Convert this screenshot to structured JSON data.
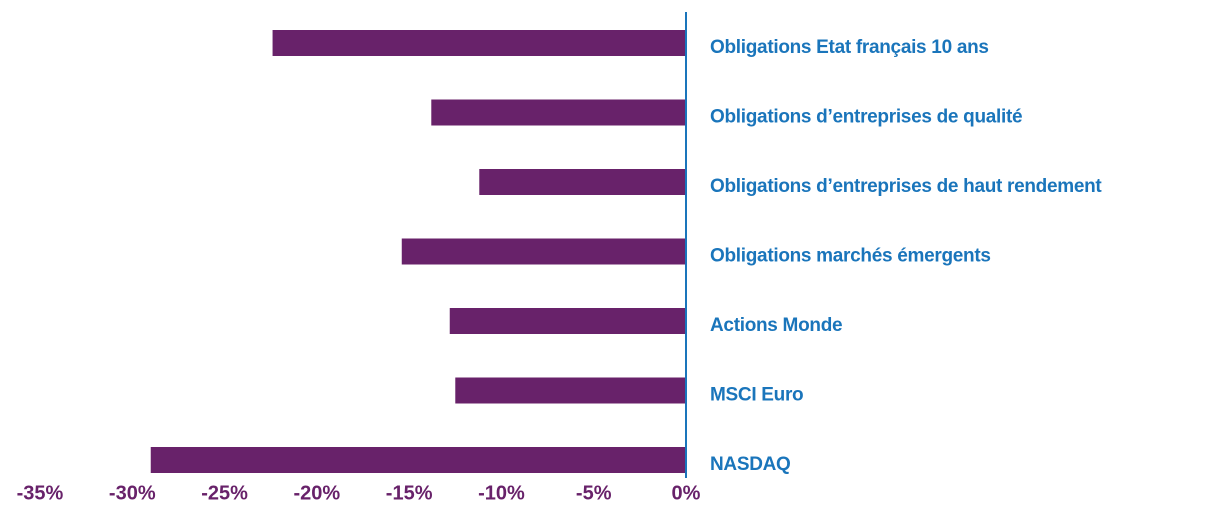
{
  "chart_data": {
    "type": "bar",
    "orientation": "horizontal",
    "categories": [
      "Obligations Etat français 10 ans",
      "Obligations d’entreprises de qualité",
      "Obligations d’entreprises de haut rendement",
      "Obligations marchés émergents",
      "Actions Monde",
      "MSCI Euro",
      "NASDAQ"
    ],
    "values": [
      -22.4,
      -13.8,
      -11.2,
      -15.4,
      -12.8,
      -12.5,
      -29.0
    ],
    "color": "#68226a",
    "xlim": [
      -35,
      0
    ],
    "xticks": [
      {
        "value": -35,
        "label": "-35%"
      },
      {
        "value": -30,
        "label": "-30%"
      },
      {
        "value": -25,
        "label": "-25%"
      },
      {
        "value": -20,
        "label": "-20%"
      },
      {
        "value": -15,
        "label": "-15%"
      },
      {
        "value": -10,
        "label": "-10%"
      },
      {
        "value": -5,
        "label": "-5%"
      },
      {
        "value": 0,
        "label": "0%"
      }
    ],
    "grid": false
  }
}
